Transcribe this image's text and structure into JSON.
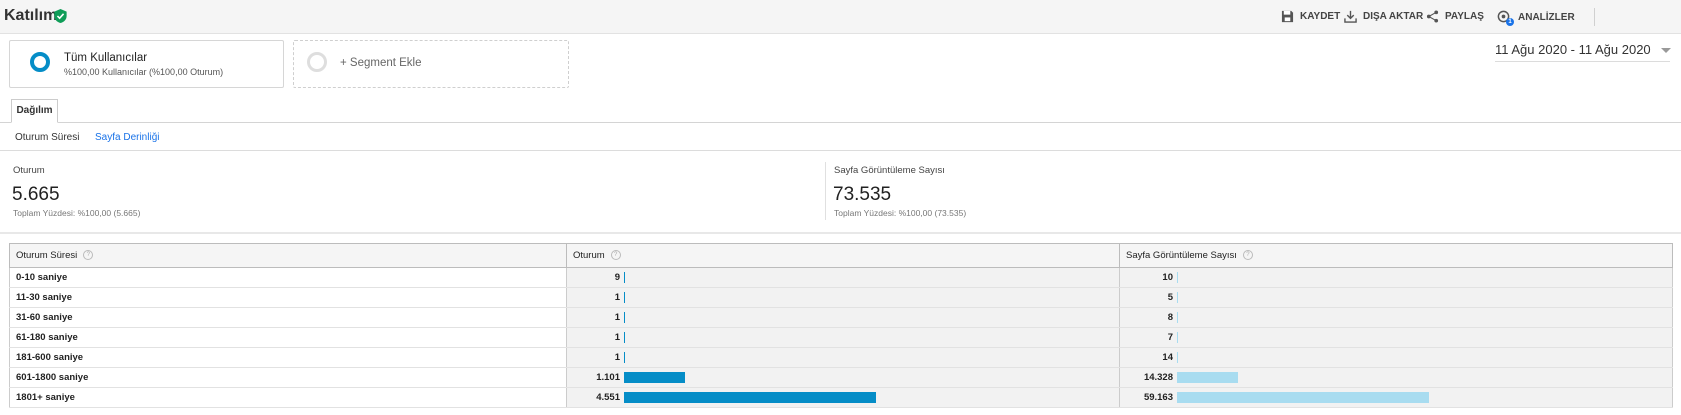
{
  "header": {
    "title": "Katılım",
    "buttons": {
      "save": "KAYDET",
      "export": "DIŞA AKTAR",
      "share": "PAYLAŞ",
      "insights": "ANALİZLER",
      "insights_badge": "1"
    }
  },
  "segments": {
    "active": {
      "title": "Tüm Kullanıcılar",
      "subtitle": "%100,00 Kullanıcılar (%100,00 Oturum)"
    },
    "add_label": "+ Segment Ekle"
  },
  "date_range": "11 Ağu 2020 - 11 Ağu 2020",
  "tabs": {
    "distribution": "Dağılım"
  },
  "subtabs": {
    "duration": "Oturum Süresi",
    "depth": "Sayfa Derinliği"
  },
  "metrics": [
    {
      "label": "Oturum",
      "value": "5.665",
      "sub": "Toplam Yüzdesi: %100,00 (5.665)"
    },
    {
      "label": "Sayfa Görüntüleme Sayısı",
      "value": "73.535",
      "sub": "Toplam Yüzdesi: %100,00 (73.535)"
    }
  ],
  "table": {
    "columns": [
      "Oturum Süresi",
      "Oturum",
      "Sayfa Görüntüleme Sayısı"
    ],
    "help_glyph": "?",
    "rows": [
      {
        "label": "0-10 saniye",
        "sessions": "9",
        "sessions_num": 9,
        "pageviews": "10",
        "pageviews_num": 10
      },
      {
        "label": "11-30 saniye",
        "sessions": "1",
        "sessions_num": 1,
        "pageviews": "5",
        "pageviews_num": 5
      },
      {
        "label": "31-60 saniye",
        "sessions": "1",
        "sessions_num": 1,
        "pageviews": "8",
        "pageviews_num": 8
      },
      {
        "label": "61-180 saniye",
        "sessions": "1",
        "sessions_num": 1,
        "pageviews": "7",
        "pageviews_num": 7
      },
      {
        "label": "181-600 saniye",
        "sessions": "1",
        "sessions_num": 1,
        "pageviews": "14",
        "pageviews_num": 14
      },
      {
        "label": "601-1800 saniye",
        "sessions": "1.101",
        "sessions_num": 1101,
        "pageviews": "14.328",
        "pageviews_num": 14328
      },
      {
        "label": "1801+ saniye",
        "sessions": "4.551",
        "sessions_num": 4551,
        "pageviews": "59.163",
        "pageviews_num": 59163
      }
    ]
  },
  "colors": {
    "check": "#0f9d58",
    "bar_sessions": "#058dc7",
    "bar_pageviews": "#a8dcf0",
    "link": "#1a73e8"
  },
  "icons": [
    "check-shield-icon",
    "save-icon",
    "download-icon",
    "share-icon",
    "insights-icon",
    "help-icon"
  ]
}
